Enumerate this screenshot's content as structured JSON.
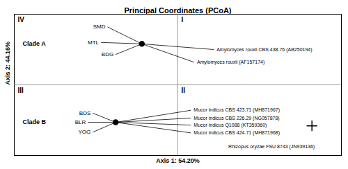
{
  "chart_data": {
    "type": "scatter",
    "title": "Principal Coordinates (PCoA)",
    "xlabel": "Axis 1: 54.20%",
    "ylabel": "Axis 2: 44.16%",
    "xlim": [
      -1.0,
      1.0
    ],
    "ylim": [
      -1.0,
      1.0
    ],
    "tick_labels": false,
    "axis_cross_x": 0.0,
    "axis_cross_y": 0.0,
    "quadrant_labels": {
      "upper_left": "IV",
      "upper_right": "I",
      "lower_left": "III",
      "lower_right": "II"
    },
    "clusters": [
      {
        "name": "Clade A",
        "center": {
          "x": -0.22,
          "y": 0.58
        },
        "marker": "circle",
        "color": "black",
        "samples": [
          {
            "label": "SMD",
            "x": -0.43,
            "y": 0.82
          },
          {
            "label": "MTL",
            "x": -0.47,
            "y": 0.6
          },
          {
            "label": "BDG",
            "x": -0.38,
            "y": 0.43
          }
        ],
        "references": [
          {
            "label": "Amylomyces rouxii CBS 438.76 (AB250194)",
            "italic": "Amylomyces rouxi",
            "x": 0.22,
            "y": 0.5
          },
          {
            "label": "Amylomyces rouxii (AF157174)",
            "italic": "Amylomyces rouxi",
            "x": 0.1,
            "y": 0.32
          }
        ]
      },
      {
        "name": "Clade B",
        "center": {
          "x": -0.38,
          "y": -0.53
        },
        "marker": "circle",
        "color": "black",
        "samples": [
          {
            "label": "BDS",
            "x": -0.52,
            "y": -0.4
          },
          {
            "label": "BLR",
            "x": -0.55,
            "y": -0.53
          },
          {
            "label": "YOG",
            "x": -0.52,
            "y": -0.67
          }
        ],
        "references": [
          {
            "label": "Mucor indicus CBS 423.71 (MH871967)",
            "italic": "Mucor indicu",
            "x": 0.08,
            "y": -0.36
          },
          {
            "label": "Mucor indicus CBS 226.29 (NG057878)",
            "italic": "Mucor indicu",
            "x": 0.08,
            "y": -0.47
          },
          {
            "label": "Mucor indicus Q1088 (KT359360)",
            "italic": "Mucor indicu",
            "x": 0.08,
            "y": -0.57
          },
          {
            "label": "Mucor indicus CBS 424.71 (MH871968)",
            "italic": "Mucor indicu",
            "x": 0.08,
            "y": -0.68
          }
        ]
      }
    ],
    "outlier": {
      "label": "Rhizopus oryzae FSU 8743 (JN939136)",
      "italic": "Rhizopus oryz",
      "x": 0.82,
      "y": -0.58,
      "marker": "plus",
      "color": "black"
    }
  }
}
